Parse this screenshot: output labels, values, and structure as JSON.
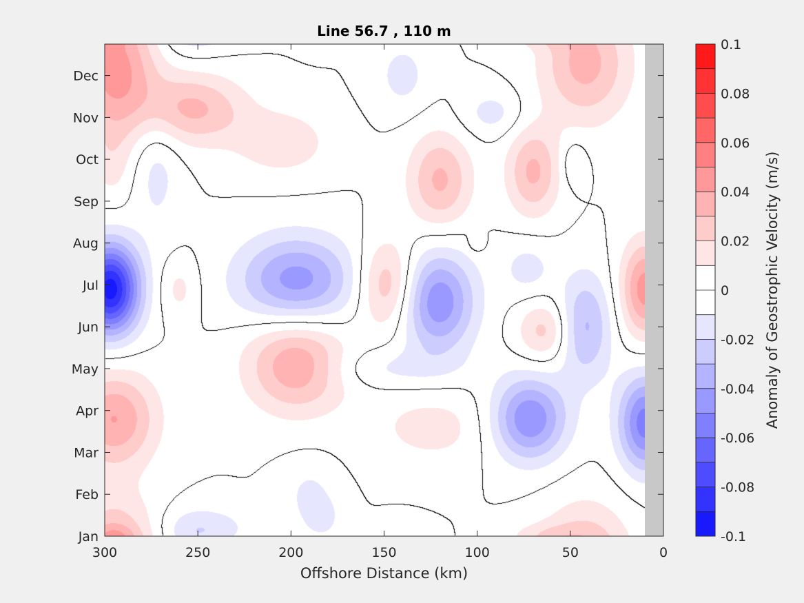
{
  "chart_data": {
    "type": "heatmap",
    "subtype": "filled-contour",
    "title": "Line 56.7 , 110 m",
    "xlabel": "Offshore Distance (km)",
    "ylabel": "",
    "xlim": [
      300,
      0
    ],
    "x_reversed": true,
    "x_ticks": [
      300,
      250,
      200,
      150,
      100,
      50,
      0
    ],
    "x_tick_labels": [
      "300",
      "250",
      "200",
      "150",
      "100",
      "50",
      "0"
    ],
    "y_categories": [
      "Jan",
      "Feb",
      "Mar",
      "Apr",
      "May",
      "Jun",
      "Jul",
      "Aug",
      "Sep",
      "Oct",
      "Nov",
      "Dec"
    ],
    "grid": false,
    "colorbar": {
      "label": "Anomaly of Geostrophic Velocity (m/s)",
      "clim": [
        -0.1,
        0.1
      ],
      "step": 0.01,
      "tick_values": [
        0.1,
        0.08,
        0.06,
        0.04,
        0.02,
        0,
        -0.02,
        -0.04,
        -0.06,
        -0.08,
        -0.1
      ],
      "tick_labels": [
        "0.1",
        "0.08",
        "0.06",
        "0.04",
        "0.02",
        "0",
        "-0.02",
        "-0.04",
        "-0.06",
        "-0.08",
        "-0.1"
      ],
      "position": "right",
      "colormap": "blue-white-red"
    },
    "zero_contour_color": "#000000",
    "nodata_color": "#c8c8c8",
    "nodata_x_range": [
      0,
      10
    ],
    "anomalies": [
      {
        "x": 297,
        "month": 5.9,
        "value": -0.095,
        "sx": 11,
        "sy": 0.75
      },
      {
        "x": 295,
        "month": 11.2,
        "value": 0.045,
        "sx": 16,
        "sy": 1.1
      },
      {
        "x": 295,
        "month": 2.8,
        "value": 0.04,
        "sx": 16,
        "sy": 0.8
      },
      {
        "x": 296,
        "month": 8.9,
        "value": 0.012,
        "sx": 8,
        "sy": 0.7
      },
      {
        "x": 272,
        "month": 8.8,
        "value": -0.014,
        "sx": 9,
        "sy": 1.1
      },
      {
        "x": 260,
        "month": 5.9,
        "value": 0.013,
        "sx": 7,
        "sy": 0.5
      },
      {
        "x": 253,
        "month": 10.2,
        "value": 0.032,
        "sx": 20,
        "sy": 0.6
      },
      {
        "x": 205,
        "month": 9.4,
        "value": 0.018,
        "sx": 18,
        "sy": 0.55
      },
      {
        "x": 242,
        "month": 12.2,
        "value": -0.013,
        "sx": 16,
        "sy": 0.35
      },
      {
        "x": 183,
        "month": 12.4,
        "value": -0.011,
        "sx": 7,
        "sy": 0.35
      },
      {
        "x": 197,
        "month": 6.1,
        "value": -0.045,
        "sx": 22,
        "sy": 0.75
      },
      {
        "x": 197,
        "month": 4.1,
        "value": 0.04,
        "sx": 19,
        "sy": 0.8
      },
      {
        "x": 148,
        "month": 6.0,
        "value": 0.032,
        "sx": 11,
        "sy": 0.75
      },
      {
        "x": 121,
        "month": 5.6,
        "value": -0.048,
        "sx": 14,
        "sy": 0.85
      },
      {
        "x": 120,
        "month": 8.5,
        "value": 0.032,
        "sx": 12,
        "sy": 0.8
      },
      {
        "x": 124,
        "month": 2.6,
        "value": 0.014,
        "sx": 24,
        "sy": 0.65
      },
      {
        "x": 148,
        "month": 4.0,
        "value": -0.012,
        "sx": 28,
        "sy": 0.35
      },
      {
        "x": 140,
        "month": 11.0,
        "value": -0.014,
        "sx": 10,
        "sy": 0.6
      },
      {
        "x": 92,
        "month": 10.1,
        "value": -0.014,
        "sx": 12,
        "sy": 0.4
      },
      {
        "x": 72,
        "month": 2.8,
        "value": -0.05,
        "sx": 14,
        "sy": 0.7
      },
      {
        "x": 70,
        "month": 8.7,
        "value": 0.032,
        "sx": 10,
        "sy": 0.75
      },
      {
        "x": 64,
        "month": 4.9,
        "value": 0.024,
        "sx": 10,
        "sy": 0.5
      },
      {
        "x": 73,
        "month": 6.4,
        "value": -0.014,
        "sx": 10,
        "sy": 0.5
      },
      {
        "x": 42,
        "month": 11.3,
        "value": 0.034,
        "sx": 17,
        "sy": 1.0
      },
      {
        "x": 42,
        "month": 5.0,
        "value": -0.032,
        "sx": 10,
        "sy": 0.9
      },
      {
        "x": 48,
        "month": 8.9,
        "value": -0.012,
        "sx": 5,
        "sy": 0.4
      },
      {
        "x": 10,
        "month": 5.9,
        "value": 0.045,
        "sx": 9,
        "sy": 0.8
      },
      {
        "x": 10,
        "month": 2.7,
        "value": -0.055,
        "sx": 10,
        "sy": 0.8
      },
      {
        "x": 100,
        "month": 7.0,
        "value": 0.012,
        "sx": 3,
        "sy": 0.15
      },
      {
        "x": 65,
        "month": 0.0,
        "value": 0.012,
        "sx": 14,
        "sy": 0.22
      },
      {
        "x": 295,
        "month": 0.0,
        "value": 0.012,
        "sx": 7,
        "sy": 0.18
      },
      {
        "x": 190,
        "month": 1.0,
        "value": -0.012,
        "sx": 10,
        "sy": 0.55
      },
      {
        "x": 255,
        "month": 0.0,
        "value": -0.011,
        "sx": 12,
        "sy": 0.45
      }
    ]
  }
}
